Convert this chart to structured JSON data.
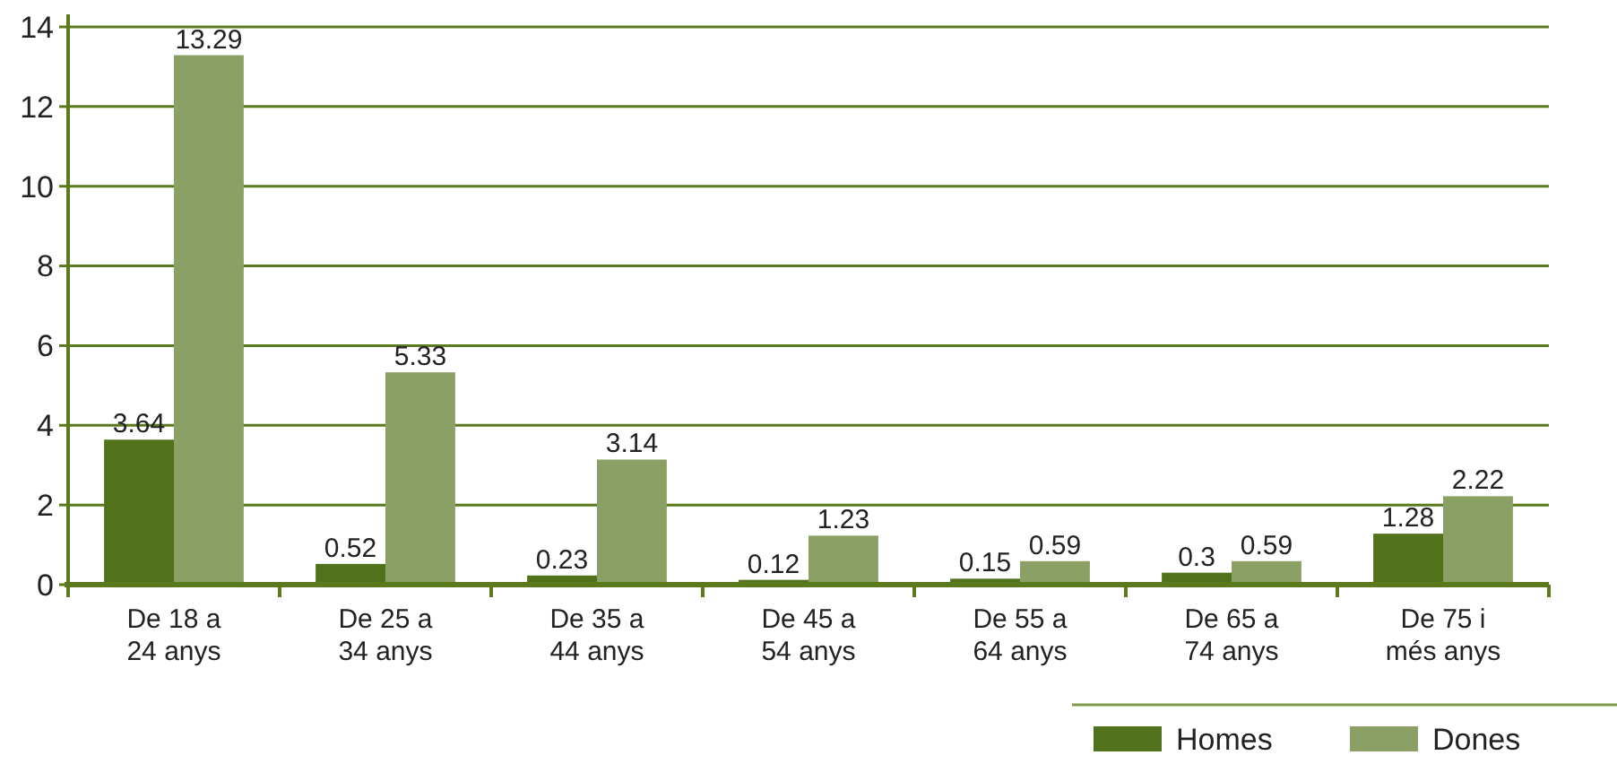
{
  "chart_data": {
    "type": "bar",
    "categories": [
      "De 18 a 24 anys",
      "De 25 a 34 anys",
      "De 35 a 44 anys",
      "De 45 a 54 anys",
      "De 55 a 64 anys",
      "De 65 a 74 anys",
      "De 75 i més anys"
    ],
    "series": [
      {
        "name": "Homes",
        "color": "#51711b",
        "values": [
          3.64,
          0.52,
          0.23,
          0.12,
          0.15,
          0.3,
          1.28
        ]
      },
      {
        "name": "Dones",
        "color": "#8ba064",
        "values": [
          13.29,
          5.33,
          3.14,
          1.23,
          0.59,
          0.59,
          2.22
        ]
      }
    ],
    "ylim": [
      0,
      14
    ],
    "yticks": [
      0,
      2,
      4,
      6,
      8,
      10,
      12,
      14
    ],
    "grid": "y",
    "legend": "bottom right",
    "data_labels": true
  }
}
